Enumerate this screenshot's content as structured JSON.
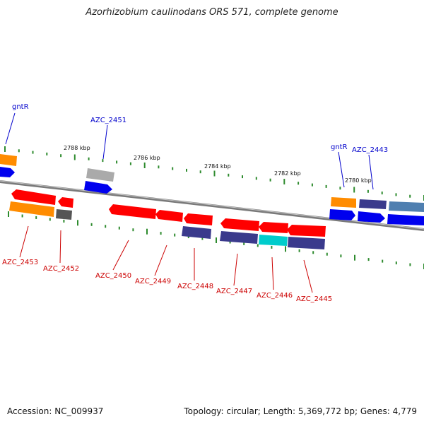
{
  "title": "Azorhizobium caulinodans ORS 571, complete genome",
  "footer": {
    "accession": "Accession: NC_009937",
    "summary": "Topology: circular; Length: 5,369,772 bp; Genes: 4,779"
  },
  "scale_labels": [
    "2788 kbp",
    "2786 kbp",
    "2784 kbp",
    "2782 kbp",
    "2780 kbp"
  ],
  "forward_labels": [
    "gntR",
    "AZC_2451",
    "gntR",
    "AZC_2443"
  ],
  "reverse_labels": [
    "AZC_2453",
    "AZC_2452",
    "AZC_2450",
    "AZC_2449",
    "AZC_2448",
    "AZC_2447",
    "AZC_2446",
    "AZC_2445"
  ],
  "colors": {
    "forward_label": "#0000cc",
    "reverse_label": "#cc0000",
    "tick": "#2e8b2e",
    "backbone": "#808080",
    "gene_red": "#ff0000",
    "gene_orange": "#ff8c00",
    "gene_blue": "#0000ee",
    "gene_navy": "#3a3a8c",
    "gene_cyan": "#00cccc",
    "gene_gray": "#999999",
    "gene_darkgray": "#555555",
    "gene_steel": "#4f7fb0"
  }
}
